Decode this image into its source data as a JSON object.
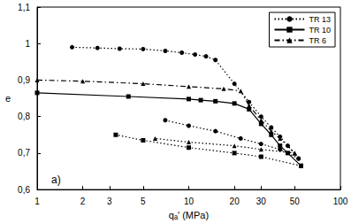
{
  "chart_data": {
    "type": "line",
    "x_label": "qₐ' (MPa)",
    "y_label": "e",
    "annotations": [
      "a)"
    ],
    "log": "x",
    "grid": false,
    "legend": "upper right",
    "xlim": [
      1,
      100
    ],
    "xticks": [
      1,
      2,
      3,
      5,
      10,
      20,
      30,
      50,
      100
    ],
    "ylim": [
      0.6,
      1.1
    ],
    "yticks": [
      {
        "value": 0.6,
        "label": "0,6"
      },
      {
        "value": 0.7,
        "label": "0,7"
      },
      {
        "value": 0.8,
        "label": "0,8"
      },
      {
        "value": 0.9,
        "label": "0,9"
      },
      {
        "value": 1.0,
        "label": "1"
      },
      {
        "value": 1.1,
        "label": "1,1"
      }
    ],
    "series": [
      {
        "name": "TR 13",
        "color": "#000000",
        "marker": "circle",
        "line_style": "dotted",
        "x": [
          1.7,
          2.5,
          3.5,
          5,
          7,
          9,
          11,
          13,
          15,
          20,
          25,
          30,
          35,
          40,
          45,
          53
        ],
        "values": [
          0.99,
          0.988,
          0.986,
          0.985,
          0.98,
          0.975,
          0.97,
          0.965,
          0.955,
          0.89,
          0.84,
          0.8,
          0.77,
          0.745,
          0.72,
          0.685
        ]
      },
      {
        "name": "TR 13",
        "color": "#000000",
        "marker": "circle",
        "line_style": "dotted",
        "x": [
          53,
          40,
          30,
          22,
          15,
          10,
          7
        ],
        "values": [
          0.685,
          0.71,
          0.725,
          0.74,
          0.76,
          0.775,
          0.79
        ]
      },
      {
        "name": "TR 10",
        "color": "#000000",
        "marker": "square",
        "line_style": "solid",
        "x": [
          1,
          4,
          10,
          12,
          15,
          20,
          25,
          30,
          35,
          40,
          45,
          55
        ],
        "values": [
          0.865,
          0.855,
          0.848,
          0.845,
          0.842,
          0.836,
          0.82,
          0.78,
          0.75,
          0.72,
          0.7,
          0.665
        ]
      },
      {
        "name": "TR 10",
        "color": "#000000",
        "marker": "square",
        "line_style": "dotted",
        "x": [
          55,
          30,
          20,
          10,
          5,
          3.3
        ],
        "values": [
          0.665,
          0.69,
          0.7,
          0.715,
          0.735,
          0.75
        ]
      },
      {
        "name": "TR 6",
        "color": "#000000",
        "marker": "triangle",
        "line_style": "dashdot",
        "x": [
          1,
          2,
          5,
          10,
          17,
          22,
          25,
          30,
          35,
          40,
          50
        ],
        "values": [
          0.9,
          0.897,
          0.89,
          0.882,
          0.876,
          0.87,
          0.83,
          0.79,
          0.76,
          0.74,
          0.7
        ]
      },
      {
        "name": "TR 6",
        "color": "#000000",
        "marker": "triangle",
        "line_style": "dotted",
        "x": [
          50,
          30,
          20,
          10,
          6
        ],
        "values": [
          0.7,
          0.71,
          0.72,
          0.73,
          0.74
        ]
      }
    ]
  }
}
